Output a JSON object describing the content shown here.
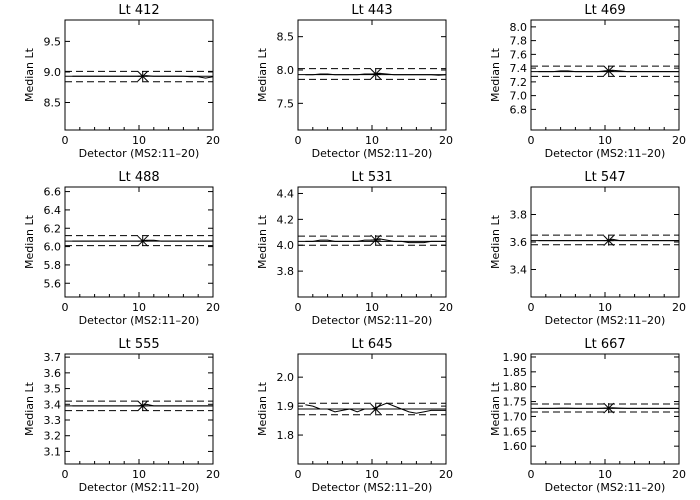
{
  "chart_data": [
    {
      "type": "line",
      "title": "Lt 412",
      "xlabel": "Detector (MS2:11–20)",
      "ylabel": "Median Lt",
      "xlim": [
        0,
        20
      ],
      "ylim": [
        8.05,
        9.85
      ],
      "xticks": [
        "0",
        "10",
        "20"
      ],
      "yticks": [
        "8.5",
        "9.0",
        "9.5"
      ],
      "ytick_values": [
        8.5,
        9.0,
        9.5
      ],
      "series": [
        {
          "x": [
            1,
            2,
            3,
            4,
            5,
            6,
            7,
            8,
            9,
            10,
            11,
            12,
            13,
            14,
            15,
            16,
            17,
            18,
            19,
            20
          ],
          "values": [
            8.93,
            8.93,
            8.93,
            8.93,
            8.93,
            8.93,
            8.93,
            8.93,
            8.93,
            8.93,
            8.94,
            8.93,
            8.93,
            8.93,
            8.93,
            8.93,
            8.92,
            8.92,
            8.9,
            8.92
          ]
        }
      ],
      "mean": 8.93,
      "upper": 9.01,
      "lower": 8.84,
      "marker_x": 10.5,
      "marker_y": 8.93
    },
    {
      "type": "line",
      "title": "Lt 443",
      "xlabel": "Detector (MS2:11–20)",
      "ylabel": "Median Lt",
      "xlim": [
        0,
        20
      ],
      "ylim": [
        7.1,
        8.75
      ],
      "xticks": [
        "0",
        "10",
        "20"
      ],
      "yticks": [
        "7.5",
        "8.0",
        "8.5"
      ],
      "ytick_values": [
        7.5,
        8.0,
        8.5
      ],
      "series": [
        {
          "x": [
            1,
            2,
            3,
            4,
            5,
            6,
            7,
            8,
            9,
            10,
            11,
            12,
            13,
            14,
            15,
            16,
            17,
            18,
            19,
            20
          ],
          "values": [
            7.93,
            7.93,
            7.94,
            7.94,
            7.93,
            7.93,
            7.93,
            7.93,
            7.94,
            7.94,
            7.95,
            7.94,
            7.93,
            7.93,
            7.93,
            7.93,
            7.93,
            7.93,
            7.92,
            7.93
          ]
        }
      ],
      "mean": 7.93,
      "upper": 8.02,
      "lower": 7.86,
      "marker_x": 10.5,
      "marker_y": 7.94
    },
    {
      "type": "line",
      "title": "Lt 469",
      "xlabel": "Detector (MS2:11–20)",
      "ylabel": "Median Lt",
      "xlim": [
        0,
        20
      ],
      "ylim": [
        6.5,
        8.1
      ],
      "xticks": [
        "0",
        "10",
        "20"
      ],
      "yticks": [
        "6.8",
        "7.0",
        "7.2",
        "7.4",
        "7.6",
        "7.8",
        "8.0"
      ],
      "ytick_values": [
        6.8,
        7.0,
        7.2,
        7.4,
        7.6,
        7.8,
        8.0
      ],
      "series": [
        {
          "x": [
            1,
            2,
            3,
            4,
            5,
            6,
            7,
            8,
            9,
            10,
            11,
            12,
            13,
            14,
            15,
            16,
            17,
            18,
            19,
            20
          ],
          "values": [
            7.35,
            7.35,
            7.35,
            7.36,
            7.36,
            7.35,
            7.35,
            7.35,
            7.35,
            7.36,
            7.37,
            7.36,
            7.35,
            7.35,
            7.35,
            7.35,
            7.35,
            7.35,
            7.35,
            7.35
          ]
        }
      ],
      "mean": 7.35,
      "upper": 7.43,
      "lower": 7.28,
      "marker_x": 10.5,
      "marker_y": 7.36
    },
    {
      "type": "line",
      "title": "Lt 488",
      "xlabel": "Detector (MS2:11–20)",
      "ylabel": "Median Lt",
      "xlim": [
        0,
        20
      ],
      "ylim": [
        5.45,
        6.65
      ],
      "xticks": [
        "0",
        "10",
        "20"
      ],
      "yticks": [
        "5.6",
        "5.8",
        "6.0",
        "6.2",
        "6.4",
        "6.6"
      ],
      "ytick_values": [
        5.6,
        5.8,
        6.0,
        6.2,
        6.4,
        6.6
      ],
      "series": [
        {
          "x": [
            1,
            2,
            3,
            4,
            5,
            6,
            7,
            8,
            9,
            10,
            11,
            12,
            13,
            14,
            15,
            16,
            17,
            18,
            19,
            20
          ],
          "values": [
            6.06,
            6.06,
            6.06,
            6.06,
            6.06,
            6.06,
            6.06,
            6.06,
            6.06,
            6.06,
            6.07,
            6.07,
            6.06,
            6.06,
            6.06,
            6.06,
            6.06,
            6.06,
            6.06,
            6.06
          ]
        }
      ],
      "mean": 6.06,
      "upper": 6.12,
      "lower": 6.01,
      "marker_x": 10.5,
      "marker_y": 6.06
    },
    {
      "type": "line",
      "title": "Lt 531",
      "xlabel": "Detector (MS2:11–20)",
      "ylabel": "Median Lt",
      "xlim": [
        0,
        20
      ],
      "ylim": [
        3.6,
        4.45
      ],
      "xticks": [
        "0",
        "10",
        "20"
      ],
      "yticks": [
        "3.8",
        "4.0",
        "4.2",
        "4.4"
      ],
      "ytick_values": [
        3.8,
        4.0,
        4.2,
        4.4
      ],
      "series": [
        {
          "x": [
            1,
            2,
            3,
            4,
            5,
            6,
            7,
            8,
            9,
            10,
            11,
            12,
            13,
            14,
            15,
            16,
            17,
            18,
            19,
            20
          ],
          "values": [
            4.03,
            4.03,
            4.04,
            4.04,
            4.03,
            4.03,
            4.03,
            4.03,
            4.04,
            4.04,
            4.05,
            4.04,
            4.03,
            4.03,
            4.02,
            4.02,
            4.02,
            4.03,
            4.03,
            4.03
          ]
        }
      ],
      "mean": 4.03,
      "upper": 4.07,
      "lower": 4.0,
      "marker_x": 10.5,
      "marker_y": 4.04
    },
    {
      "type": "line",
      "title": "Lt 547",
      "xlabel": "Detector (MS2:11–20)",
      "ylabel": "Median Lt",
      "xlim": [
        0,
        20
      ],
      "ylim": [
        3.2,
        4.0
      ],
      "xticks": [
        "0",
        "10",
        "20"
      ],
      "yticks": [
        "3.4",
        "3.6",
        "3.8"
      ],
      "ytick_values": [
        3.4,
        3.6,
        3.8
      ],
      "series": [
        {
          "x": [
            1,
            2,
            3,
            4,
            5,
            6,
            7,
            8,
            9,
            10,
            11,
            12,
            13,
            14,
            15,
            16,
            17,
            18,
            19,
            20
          ],
          "values": [
            3.61,
            3.61,
            3.61,
            3.61,
            3.61,
            3.61,
            3.61,
            3.61,
            3.61,
            3.61,
            3.62,
            3.61,
            3.61,
            3.61,
            3.61,
            3.61,
            3.61,
            3.61,
            3.61,
            3.61
          ]
        }
      ],
      "mean": 3.61,
      "upper": 3.65,
      "lower": 3.58,
      "marker_x": 10.5,
      "marker_y": 3.61
    },
    {
      "type": "line",
      "title": "Lt 555",
      "xlabel": "Detector (MS2:11–20)",
      "ylabel": "Median Lt",
      "xlim": [
        0,
        20
      ],
      "ylim": [
        3.02,
        3.72
      ],
      "xticks": [
        "0",
        "10",
        "20"
      ],
      "yticks": [
        "3.1",
        "3.2",
        "3.3",
        "3.4",
        "3.5",
        "3.6",
        "3.7"
      ],
      "ytick_values": [
        3.1,
        3.2,
        3.3,
        3.4,
        3.5,
        3.6,
        3.7
      ],
      "series": [
        {
          "x": [
            1,
            2,
            3,
            4,
            5,
            6,
            7,
            8,
            9,
            10,
            11,
            12,
            13,
            14,
            15,
            16,
            17,
            18,
            19,
            20
          ],
          "values": [
            3.39,
            3.39,
            3.39,
            3.39,
            3.39,
            3.39,
            3.39,
            3.39,
            3.39,
            3.39,
            3.4,
            3.39,
            3.39,
            3.39,
            3.39,
            3.39,
            3.39,
            3.39,
            3.39,
            3.39
          ]
        }
      ],
      "mean": 3.39,
      "upper": 3.42,
      "lower": 3.36,
      "marker_x": 10.5,
      "marker_y": 3.39
    },
    {
      "type": "line",
      "title": "Lt 645",
      "xlabel": "Detector (MS2:11–20)",
      "ylabel": "Median Lt",
      "xlim": [
        0,
        20
      ],
      "ylim": [
        1.7,
        2.08
      ],
      "xticks": [
        "0",
        "10",
        "20"
      ],
      "yticks": [
        "1.8",
        "1.9",
        "2.0"
      ],
      "ytick_values": [
        1.8,
        1.9,
        2.0
      ],
      "series": [
        {
          "x": [
            1,
            2,
            3,
            4,
            5,
            6,
            7,
            8,
            9,
            10,
            11,
            12,
            13,
            14,
            15,
            16,
            17,
            18,
            19,
            20
          ],
          "values": [
            1.905,
            1.9,
            1.89,
            1.89,
            1.88,
            1.885,
            1.89,
            1.88,
            1.89,
            1.89,
            1.9,
            1.91,
            1.9,
            1.89,
            1.88,
            1.875,
            1.88,
            1.885,
            1.885,
            1.885
          ]
        }
      ],
      "mean": 1.89,
      "upper": 1.91,
      "lower": 1.87,
      "marker_x": 10.5,
      "marker_y": 1.89
    },
    {
      "type": "line",
      "title": "Lt 667",
      "xlabel": "Detector (MS2:11–20)",
      "ylabel": "Median Lt",
      "xlim": [
        0,
        20
      ],
      "ylim": [
        1.54,
        1.91
      ],
      "xticks": [
        "0",
        "10",
        "20"
      ],
      "yticks": [
        "1.60",
        "1.65",
        "1.70",
        "1.75",
        "1.80",
        "1.85",
        "1.90"
      ],
      "ytick_values": [
        1.6,
        1.65,
        1.7,
        1.75,
        1.8,
        1.85,
        1.9
      ],
      "series": [
        {
          "x": [
            1,
            2,
            3,
            4,
            5,
            6,
            7,
            8,
            9,
            10,
            11,
            12,
            13,
            14,
            15,
            16,
            17,
            18,
            19,
            20
          ],
          "values": [
            1.727,
            1.727,
            1.727,
            1.728,
            1.728,
            1.727,
            1.727,
            1.727,
            1.727,
            1.728,
            1.729,
            1.728,
            1.727,
            1.727,
            1.727,
            1.727,
            1.727,
            1.727,
            1.727,
            1.727
          ]
        }
      ],
      "mean": 1.727,
      "upper": 1.742,
      "lower": 1.715,
      "marker_x": 10.5,
      "marker_y": 1.728
    }
  ]
}
